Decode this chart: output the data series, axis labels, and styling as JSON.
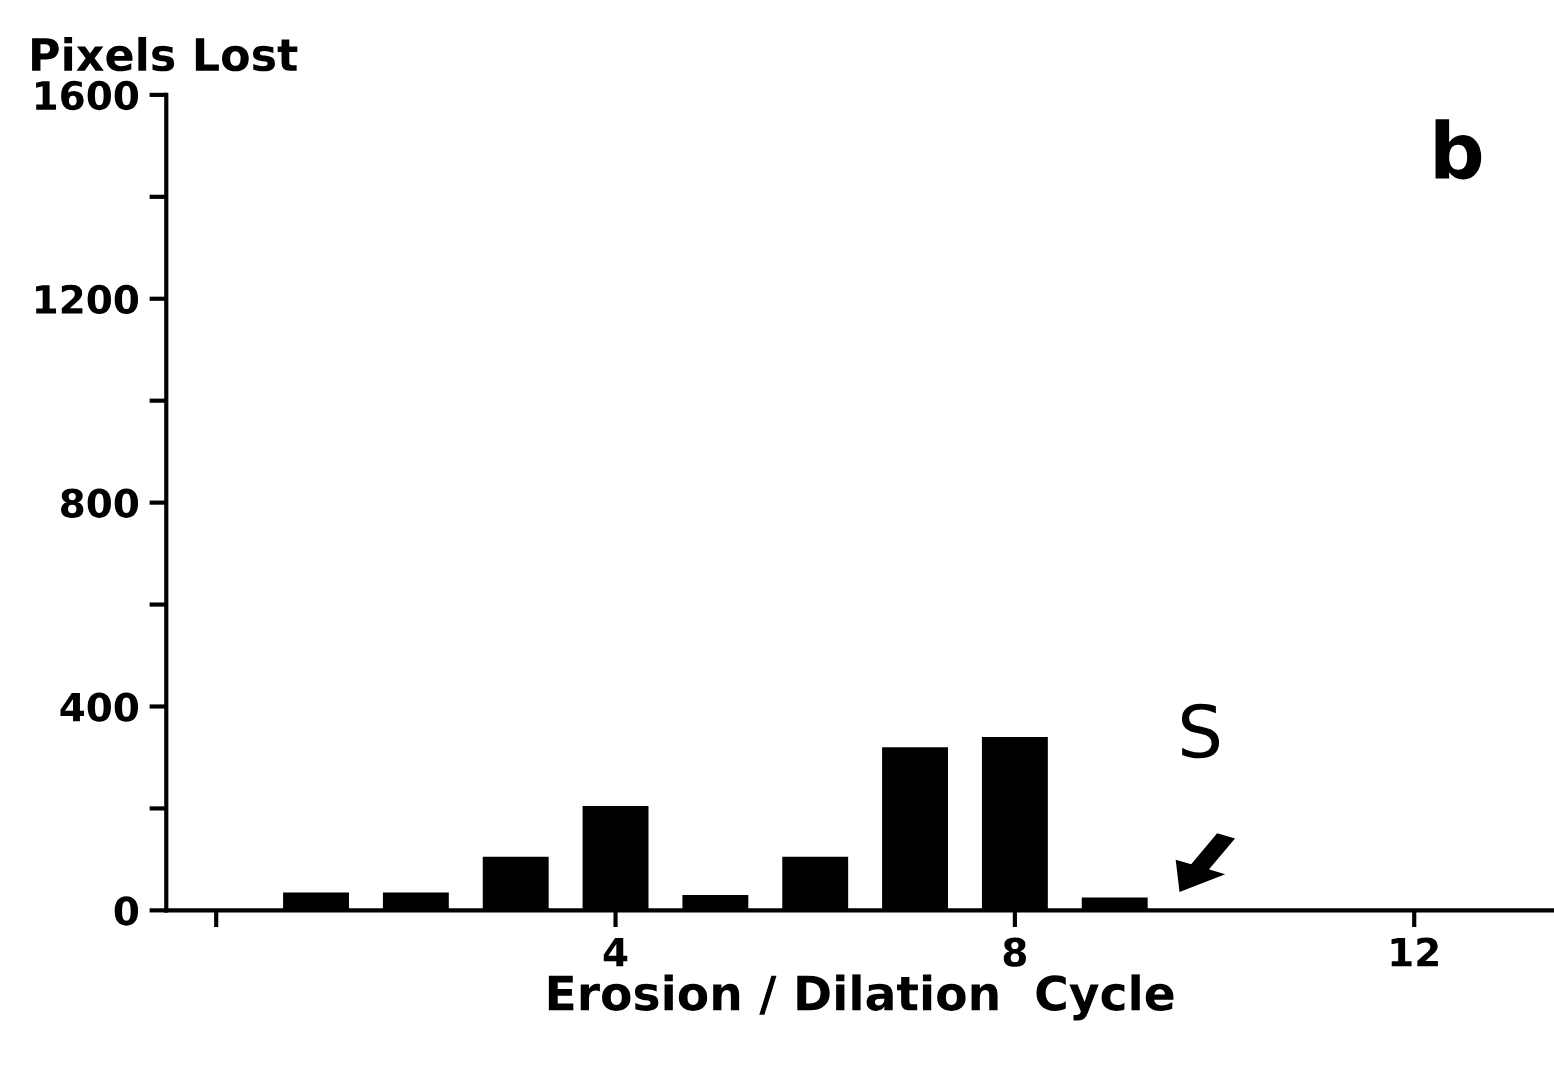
{
  "chart_data": {
    "type": "bar",
    "ylabel": "Pixels Lost",
    "xlabel": "Erosion / Dilation  Cycle",
    "x": [
      1,
      2,
      3,
      4,
      5,
      6,
      7,
      8,
      9
    ],
    "values": [
      35,
      35,
      105,
      205,
      30,
      105,
      320,
      340,
      25
    ],
    "color": "#000000",
    "xlim": [
      -0.5,
      13.4
    ],
    "ylim": [
      0,
      1600
    ],
    "xticks": [
      {
        "value": 0,
        "label": null
      },
      4,
      8,
      12
    ],
    "yticks": [
      0,
      {
        "value": 200,
        "label": null
      },
      400,
      {
        "value": 600,
        "label": null
      },
      800,
      {
        "value": 1000,
        "label": null
      },
      1200,
      {
        "value": 1400,
        "label": null
      },
      1600
    ],
    "grid": false,
    "annotations": [
      "S",
      "b"
    ]
  }
}
